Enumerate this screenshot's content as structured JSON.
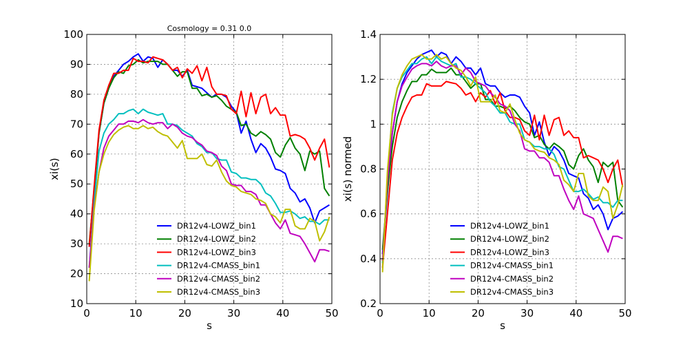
{
  "chart_data": [
    {
      "type": "line",
      "title": "Cosmology = 0.31 0.0",
      "xlabel": "s",
      "ylabel": "xi(s)",
      "xlim": [
        0,
        50
      ],
      "ylim": [
        10,
        100
      ],
      "xticks": [
        0,
        10,
        20,
        30,
        40,
        50
      ],
      "yticks": [
        10,
        20,
        30,
        40,
        50,
        60,
        70,
        80,
        90,
        100
      ],
      "grid": true,
      "legend_position": "lower-center",
      "x": [
        0.5,
        1.5,
        2.5,
        3.5,
        4.5,
        5.5,
        6.5,
        7.5,
        8.5,
        9.5,
        10.5,
        11.5,
        12.5,
        13.5,
        14.5,
        15.5,
        16.5,
        17.5,
        18.5,
        19.5,
        20.5,
        21.5,
        22.5,
        23.5,
        24.5,
        25.5,
        26.5,
        27.5,
        28.5,
        29.5,
        30.5,
        31.5,
        32.5,
        33.5,
        34.5,
        35.5,
        36.5,
        37.5,
        38.5,
        39.5,
        40.5,
        41.5,
        42.5,
        43.5,
        44.5,
        45.5,
        46.5,
        47.5,
        48.5,
        49.5
      ],
      "series": [
        {
          "name": "DR12v4-LOWZ_bin1",
          "color": "#0000ff",
          "values": [
            29,
            48,
            67,
            77,
            82,
            86,
            88,
            90,
            91,
            92.5,
            93.5,
            91,
            92.5,
            92,
            89,
            91.5,
            90,
            88,
            88,
            86,
            88,
            83,
            82.5,
            82,
            80.5,
            79,
            80,
            80,
            79,
            76,
            74,
            67,
            71,
            65,
            60.5,
            63.5,
            62,
            59,
            55,
            54.5,
            53.5,
            48.5,
            47,
            44,
            45,
            42,
            37,
            41,
            42,
            43
          ]
        },
        {
          "name": "DR12v4-LOWZ_bin2",
          "color": "#008000",
          "values": [
            30,
            48,
            67,
            77,
            82,
            85.5,
            87.5,
            87,
            89.5,
            90,
            91.5,
            90.5,
            91,
            91,
            91,
            90,
            90,
            88,
            86,
            87.5,
            87.5,
            82,
            82,
            79.5,
            80,
            79,
            79.5,
            78,
            76,
            75,
            74,
            69.5,
            70,
            67,
            66,
            67.5,
            66.5,
            65,
            60.5,
            59,
            63,
            65.5,
            62,
            60,
            54.5,
            61,
            60,
            61,
            48.5,
            46
          ]
        },
        {
          "name": "DR12v4-LOWZ_bin3",
          "color": "#ff0000",
          "values": [
            29,
            49,
            68,
            78,
            83,
            87,
            87,
            88,
            88,
            92,
            91,
            91,
            90.5,
            92.5,
            92,
            91.5,
            90,
            88,
            89,
            85.5,
            88.5,
            87,
            89.5,
            84.5,
            89,
            82.5,
            80,
            80,
            79.5,
            75,
            73.5,
            81,
            72.5,
            80.5,
            73.5,
            79,
            80,
            73.5,
            75.5,
            73,
            73,
            66,
            66.5,
            66,
            65,
            62,
            58,
            62,
            65,
            55.5
          ]
        },
        {
          "name": "DR12v4-CMASS_bin1",
          "color": "#00bfbf",
          "values": [
            22,
            44,
            61,
            67,
            70,
            71.5,
            73.5,
            73.5,
            74.5,
            75,
            73.5,
            75,
            74,
            73.5,
            73,
            73.5,
            70,
            70,
            69.5,
            68,
            67,
            66,
            63.5,
            62.5,
            60.5,
            60.5,
            58.5,
            58,
            58,
            54,
            53.5,
            52,
            52,
            51.5,
            51.5,
            50,
            47,
            46,
            43.5,
            40.5,
            40.5,
            41,
            40,
            38.5,
            39,
            37.5,
            37.5,
            36.5,
            38,
            38
          ]
        },
        {
          "name": "DR12v4-CMASS_bin2",
          "color": "#bf00bf",
          "values": [
            22,
            42,
            54,
            62,
            66,
            68,
            70,
            70,
            71,
            71,
            70.5,
            71.5,
            70.5,
            70,
            70.5,
            70.5,
            68.5,
            70,
            69,
            67,
            66,
            65.5,
            64,
            63,
            61,
            60.5,
            59.5,
            56,
            54.5,
            50,
            49.5,
            49.5,
            47.5,
            47.5,
            46.5,
            43,
            43,
            40,
            37,
            35,
            38,
            33.5,
            33,
            32.5,
            30,
            27,
            24,
            28,
            28,
            27.5
          ]
        },
        {
          "name": "DR12v4-CMASS_bin3",
          "color": "#bfbf00",
          "values": [
            17.5,
            41,
            54,
            60,
            64,
            66.5,
            68,
            69,
            69.5,
            68.5,
            68.5,
            69.5,
            68.5,
            69,
            67.5,
            66.5,
            66,
            64,
            62,
            64.5,
            58.5,
            58.5,
            58.5,
            60,
            56.5,
            56,
            58,
            54,
            51,
            49.5,
            49,
            47.5,
            47,
            46.5,
            45,
            44.5,
            43.5,
            40,
            39,
            37,
            41.5,
            41.5,
            36,
            35,
            35,
            38.5,
            37.5,
            31,
            34,
            39
          ]
        }
      ]
    },
    {
      "type": "line",
      "title": "",
      "xlabel": "s",
      "ylabel": "xi(s) normed",
      "xlim": [
        0,
        50
      ],
      "ylim": [
        0.2,
        1.4
      ],
      "xticks": [
        0,
        10,
        20,
        30,
        40,
        50
      ],
      "yticks": [
        0.2,
        0.4,
        0.6,
        0.8,
        1.0,
        1.2,
        1.4
      ],
      "grid": true,
      "legend_position": "lower-center",
      "x": [
        0.5,
        1.5,
        2.5,
        3.5,
        4.5,
        5.5,
        6.5,
        7.5,
        8.5,
        9.5,
        10.5,
        11.5,
        12.5,
        13.5,
        14.5,
        15.5,
        16.5,
        17.5,
        18.5,
        19.5,
        20.5,
        21.5,
        22.5,
        23.5,
        24.5,
        25.5,
        26.5,
        27.5,
        28.5,
        29.5,
        30.5,
        31.5,
        32.5,
        33.5,
        34.5,
        35.5,
        36.5,
        37.5,
        38.5,
        39.5,
        40.5,
        41.5,
        42.5,
        43.5,
        44.5,
        45.5,
        46.5,
        47.5,
        48.5,
        49.5
      ],
      "series": [
        {
          "name": "DR12v4-LOWZ_bin1",
          "color": "#0000ff",
          "values": [
            0.42,
            0.69,
            0.96,
            1.1,
            1.18,
            1.23,
            1.26,
            1.29,
            1.31,
            1.32,
            1.33,
            1.3,
            1.32,
            1.31,
            1.27,
            1.3,
            1.28,
            1.25,
            1.25,
            1.22,
            1.25,
            1.18,
            1.17,
            1.17,
            1.14,
            1.12,
            1.13,
            1.13,
            1.12,
            1.08,
            1.05,
            0.95,
            1.01,
            0.92,
            0.86,
            0.9,
            0.88,
            0.84,
            0.78,
            0.77,
            0.76,
            0.69,
            0.67,
            0.62,
            0.64,
            0.6,
            0.53,
            0.58,
            0.59,
            0.61
          ]
        },
        {
          "name": "DR12v4-LOWZ_bin2",
          "color": "#008000",
          "values": [
            0.44,
            0.7,
            0.9,
            1.03,
            1.1,
            1.15,
            1.19,
            1.19,
            1.22,
            1.22,
            1.245,
            1.23,
            1.23,
            1.23,
            1.25,
            1.22,
            1.22,
            1.19,
            1.16,
            1.18,
            1.18,
            1.11,
            1.11,
            1.08,
            1.08,
            1.07,
            1.08,
            1.06,
            1.03,
            1.01,
            1.0,
            0.94,
            0.95,
            0.91,
            0.89,
            0.915,
            0.9,
            0.88,
            0.82,
            0.8,
            0.86,
            0.89,
            0.84,
            0.81,
            0.74,
            0.83,
            0.81,
            0.83,
            0.66,
            0.63
          ]
        },
        {
          "name": "DR12v4-LOWZ_bin3",
          "color": "#ff0000",
          "values": [
            0.36,
            0.6,
            0.84,
            0.96,
            1.03,
            1.08,
            1.12,
            1.13,
            1.13,
            1.18,
            1.17,
            1.17,
            1.17,
            1.19,
            1.185,
            1.18,
            1.16,
            1.13,
            1.14,
            1.1,
            1.14,
            1.12,
            1.15,
            1.09,
            1.14,
            1.06,
            1.03,
            1.03,
            1.02,
            0.97,
            0.95,
            1.04,
            0.93,
            1.04,
            0.95,
            1.02,
            1.03,
            0.95,
            0.97,
            0.94,
            0.94,
            0.85,
            0.86,
            0.85,
            0.84,
            0.8,
            0.74,
            0.8,
            0.84,
            0.72
          ]
        },
        {
          "name": "DR12v4-CMASS_bin1",
          "color": "#00bfbf",
          "values": [
            0.38,
            0.76,
            1.05,
            1.16,
            1.21,
            1.24,
            1.27,
            1.27,
            1.29,
            1.3,
            1.27,
            1.3,
            1.28,
            1.27,
            1.26,
            1.27,
            1.21,
            1.21,
            1.2,
            1.18,
            1.16,
            1.14,
            1.1,
            1.08,
            1.05,
            1.05,
            1.01,
            1.0,
            1.0,
            0.93,
            0.92,
            0.9,
            0.9,
            0.89,
            0.89,
            0.865,
            0.81,
            0.8,
            0.75,
            0.7,
            0.7,
            0.71,
            0.69,
            0.665,
            0.675,
            0.65,
            0.65,
            0.63,
            0.66,
            0.66
          ]
        },
        {
          "name": "DR12v4-CMASS_bin2",
          "color": "#bf00bf",
          "values": [
            0.39,
            0.74,
            0.96,
            1.1,
            1.17,
            1.21,
            1.245,
            1.26,
            1.27,
            1.27,
            1.26,
            1.28,
            1.26,
            1.25,
            1.26,
            1.26,
            1.22,
            1.25,
            1.23,
            1.19,
            1.18,
            1.17,
            1.14,
            1.12,
            1.09,
            1.08,
            1.06,
            1.0,
            0.97,
            0.89,
            0.88,
            0.88,
            0.85,
            0.85,
            0.83,
            0.77,
            0.77,
            0.71,
            0.66,
            0.62,
            0.68,
            0.6,
            0.59,
            0.58,
            0.53,
            0.48,
            0.43,
            0.5,
            0.5,
            0.49
          ]
        },
        {
          "name": "DR12v4-CMASS_bin3",
          "color": "#bfbf00",
          "values": [
            0.34,
            0.79,
            1.04,
            1.16,
            1.22,
            1.26,
            1.29,
            1.3,
            1.31,
            1.29,
            1.29,
            1.31,
            1.29,
            1.3,
            1.27,
            1.25,
            1.24,
            1.21,
            1.17,
            1.21,
            1.1,
            1.1,
            1.1,
            1.13,
            1.06,
            1.05,
            1.09,
            1.02,
            0.96,
            0.93,
            0.92,
            0.89,
            0.88,
            0.875,
            0.85,
            0.84,
            0.82,
            0.75,
            0.73,
            0.7,
            0.78,
            0.78,
            0.68,
            0.66,
            0.66,
            0.72,
            0.7,
            0.58,
            0.64,
            0.73
          ]
        }
      ]
    }
  ]
}
